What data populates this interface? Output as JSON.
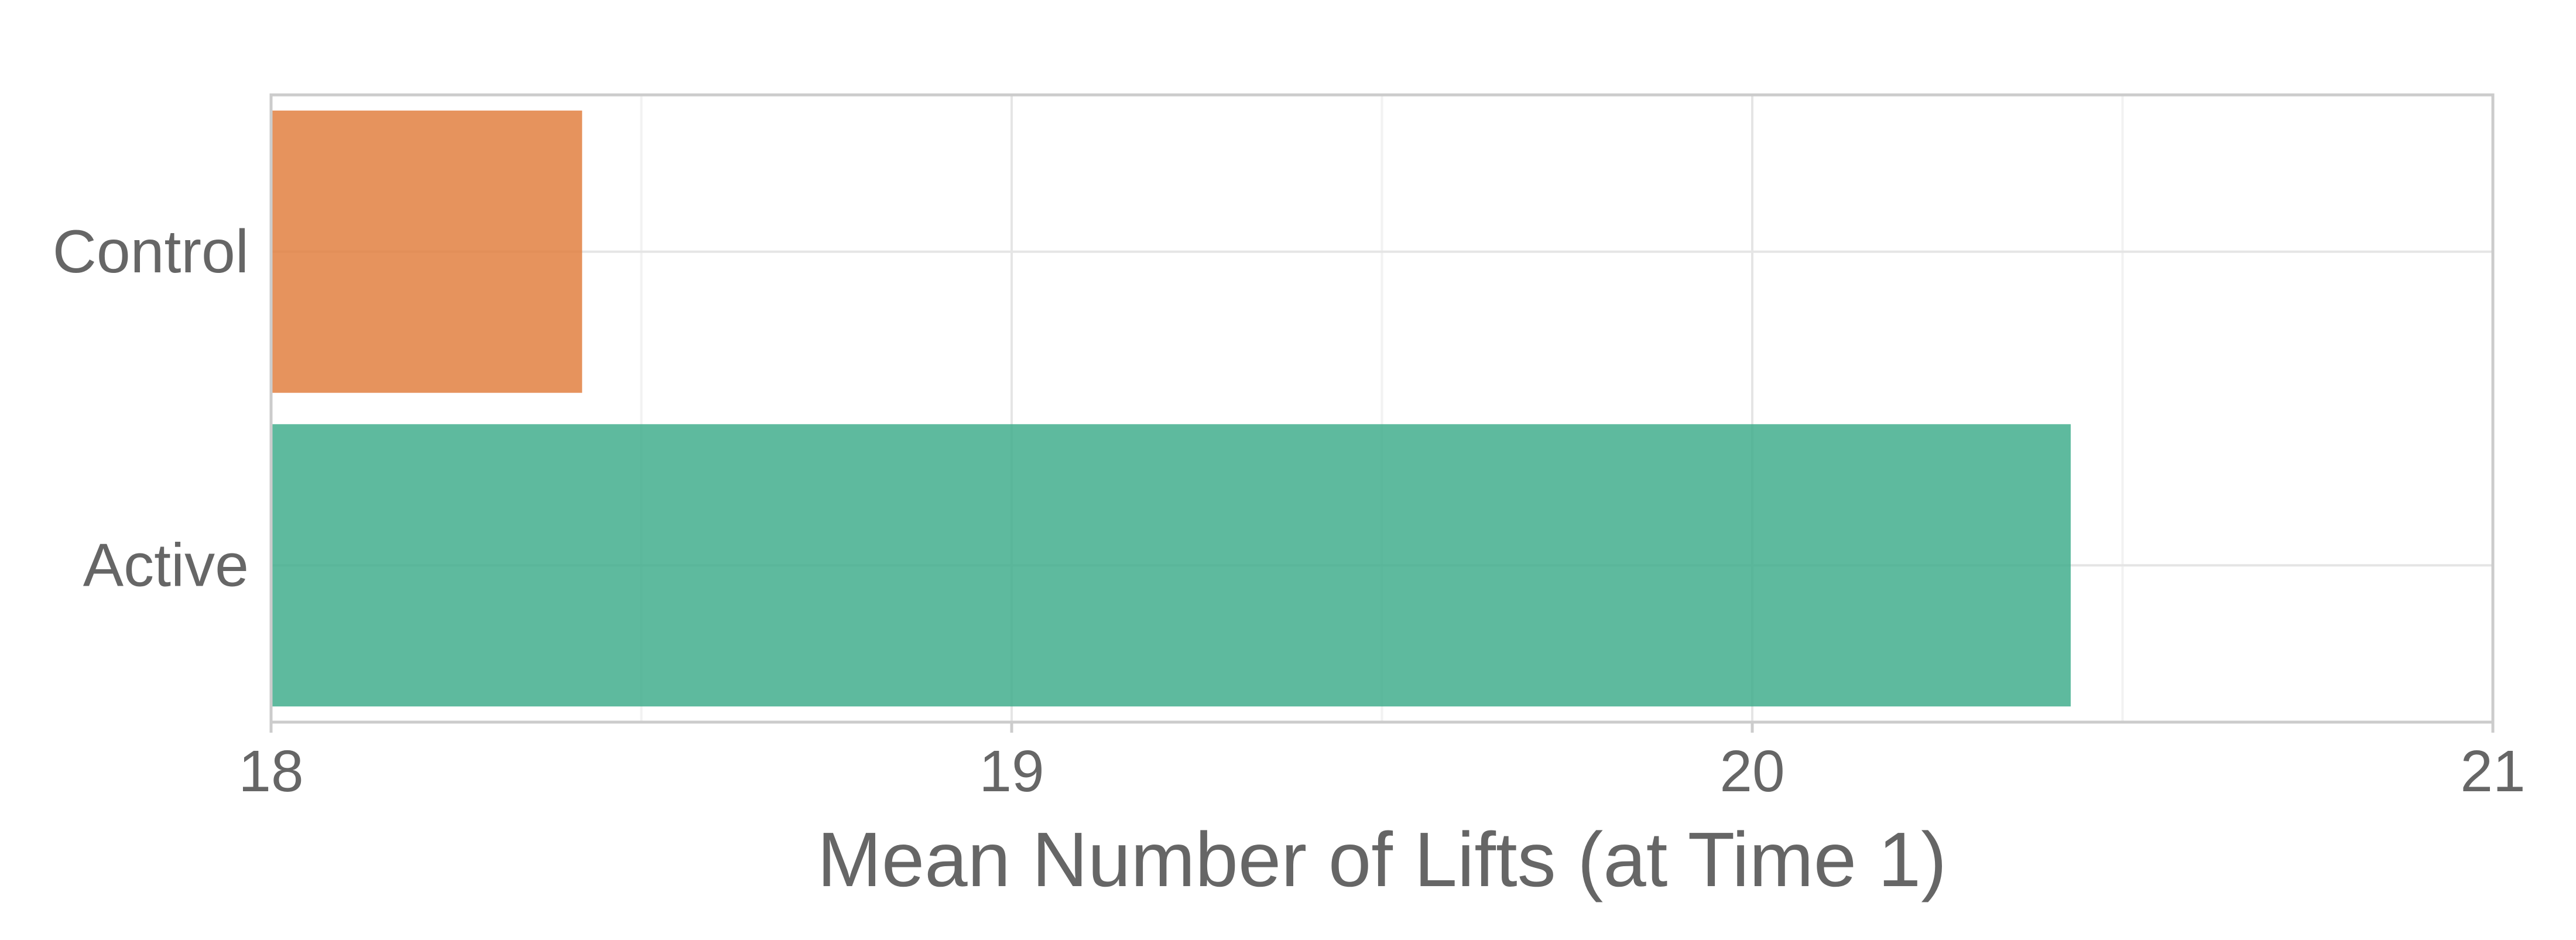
{
  "chart_data": {
    "type": "bar",
    "orientation": "horizontal",
    "categories": [
      "Control",
      "Active"
    ],
    "values": [
      18.42,
      20.43
    ],
    "colors": [
      "#e07b39",
      "#3aab89"
    ],
    "title": "",
    "xlabel": "Mean Number of Lifts (at Time 1)",
    "ylabel": "",
    "xlim": [
      18,
      21
    ],
    "xticks": [
      18,
      19,
      20,
      21
    ],
    "xtick_labels": [
      "18",
      "19",
      "20",
      "21"
    ],
    "grid": true,
    "legend": "none"
  },
  "colors": {
    "axis_frame": "#cccccc",
    "grid_major": "#e5e5e5",
    "grid_minor": "#f2f2f2",
    "text": "#666666"
  }
}
